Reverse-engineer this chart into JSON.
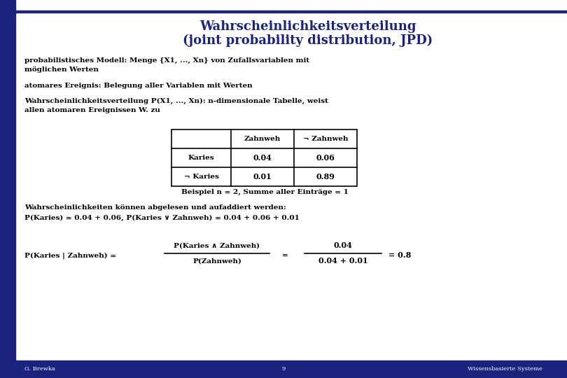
{
  "title_line1": "Wahrscheinlichkeitsverteilung",
  "title_line2": "(joint probability distribution, JPD)",
  "title_color": "#1a237e",
  "bg_color": "#ffffff",
  "left_bar_color": "#1a237e",
  "footer_bg": "#1a237e",
  "footer_text_color": "#ffffff",
  "footer_left": "G. Brewka",
  "footer_center": "9",
  "footer_right": "Wissensbasierte Systeme",
  "body_color": "#000000",
  "body_text_0": "probabilistisches Modell: Menge {X1, ..., Xn} von Zufallsvariablen mit\nmöglichen Werten",
  "body_text_1": "atomares Ereignis: Belegung aller Variablen mit Werten",
  "body_text_2": "Wahrscheinlichkeitsverteilung P(X1, ..., Xn): n-dimensionale Tabelle, weist\nallen atomaren Ereignissen W. zu",
  "table_col_headers": [
    "Zahnweh",
    "¬ Zahnweh"
  ],
  "table_row_headers": [
    "Karies",
    "¬ Karies"
  ],
  "table_values": [
    [
      "0.04",
      "0.06"
    ],
    [
      "0.01",
      "0.89"
    ]
  ],
  "example_text": "Beispiel n = 2, Summe aller Einträge = 1",
  "prob_text_line1": "Wahrscheinlichkeiten können abgelesen und aufaddiert werden:",
  "prob_text_line2": "P(Karies) = 0.04 + 0.06, P(Karies ∨ Zahnweh) = 0.04 + 0.06 + 0.01",
  "conditional_left": "P(Karies | Zahnweh) = ",
  "conditional_num": "P(Karies ∧ Zahnweh)",
  "conditional_den": "P(Zahnweh)",
  "conditional_eq": "=",
  "conditional_num2": "0.04",
  "conditional_den2": "0.04 + 0.01",
  "conditional_result": "= 0.8",
  "title_fontsize": 13,
  "body_fontsize": 7.5,
  "table_fontsize": 7.5,
  "footer_fontsize": 6
}
